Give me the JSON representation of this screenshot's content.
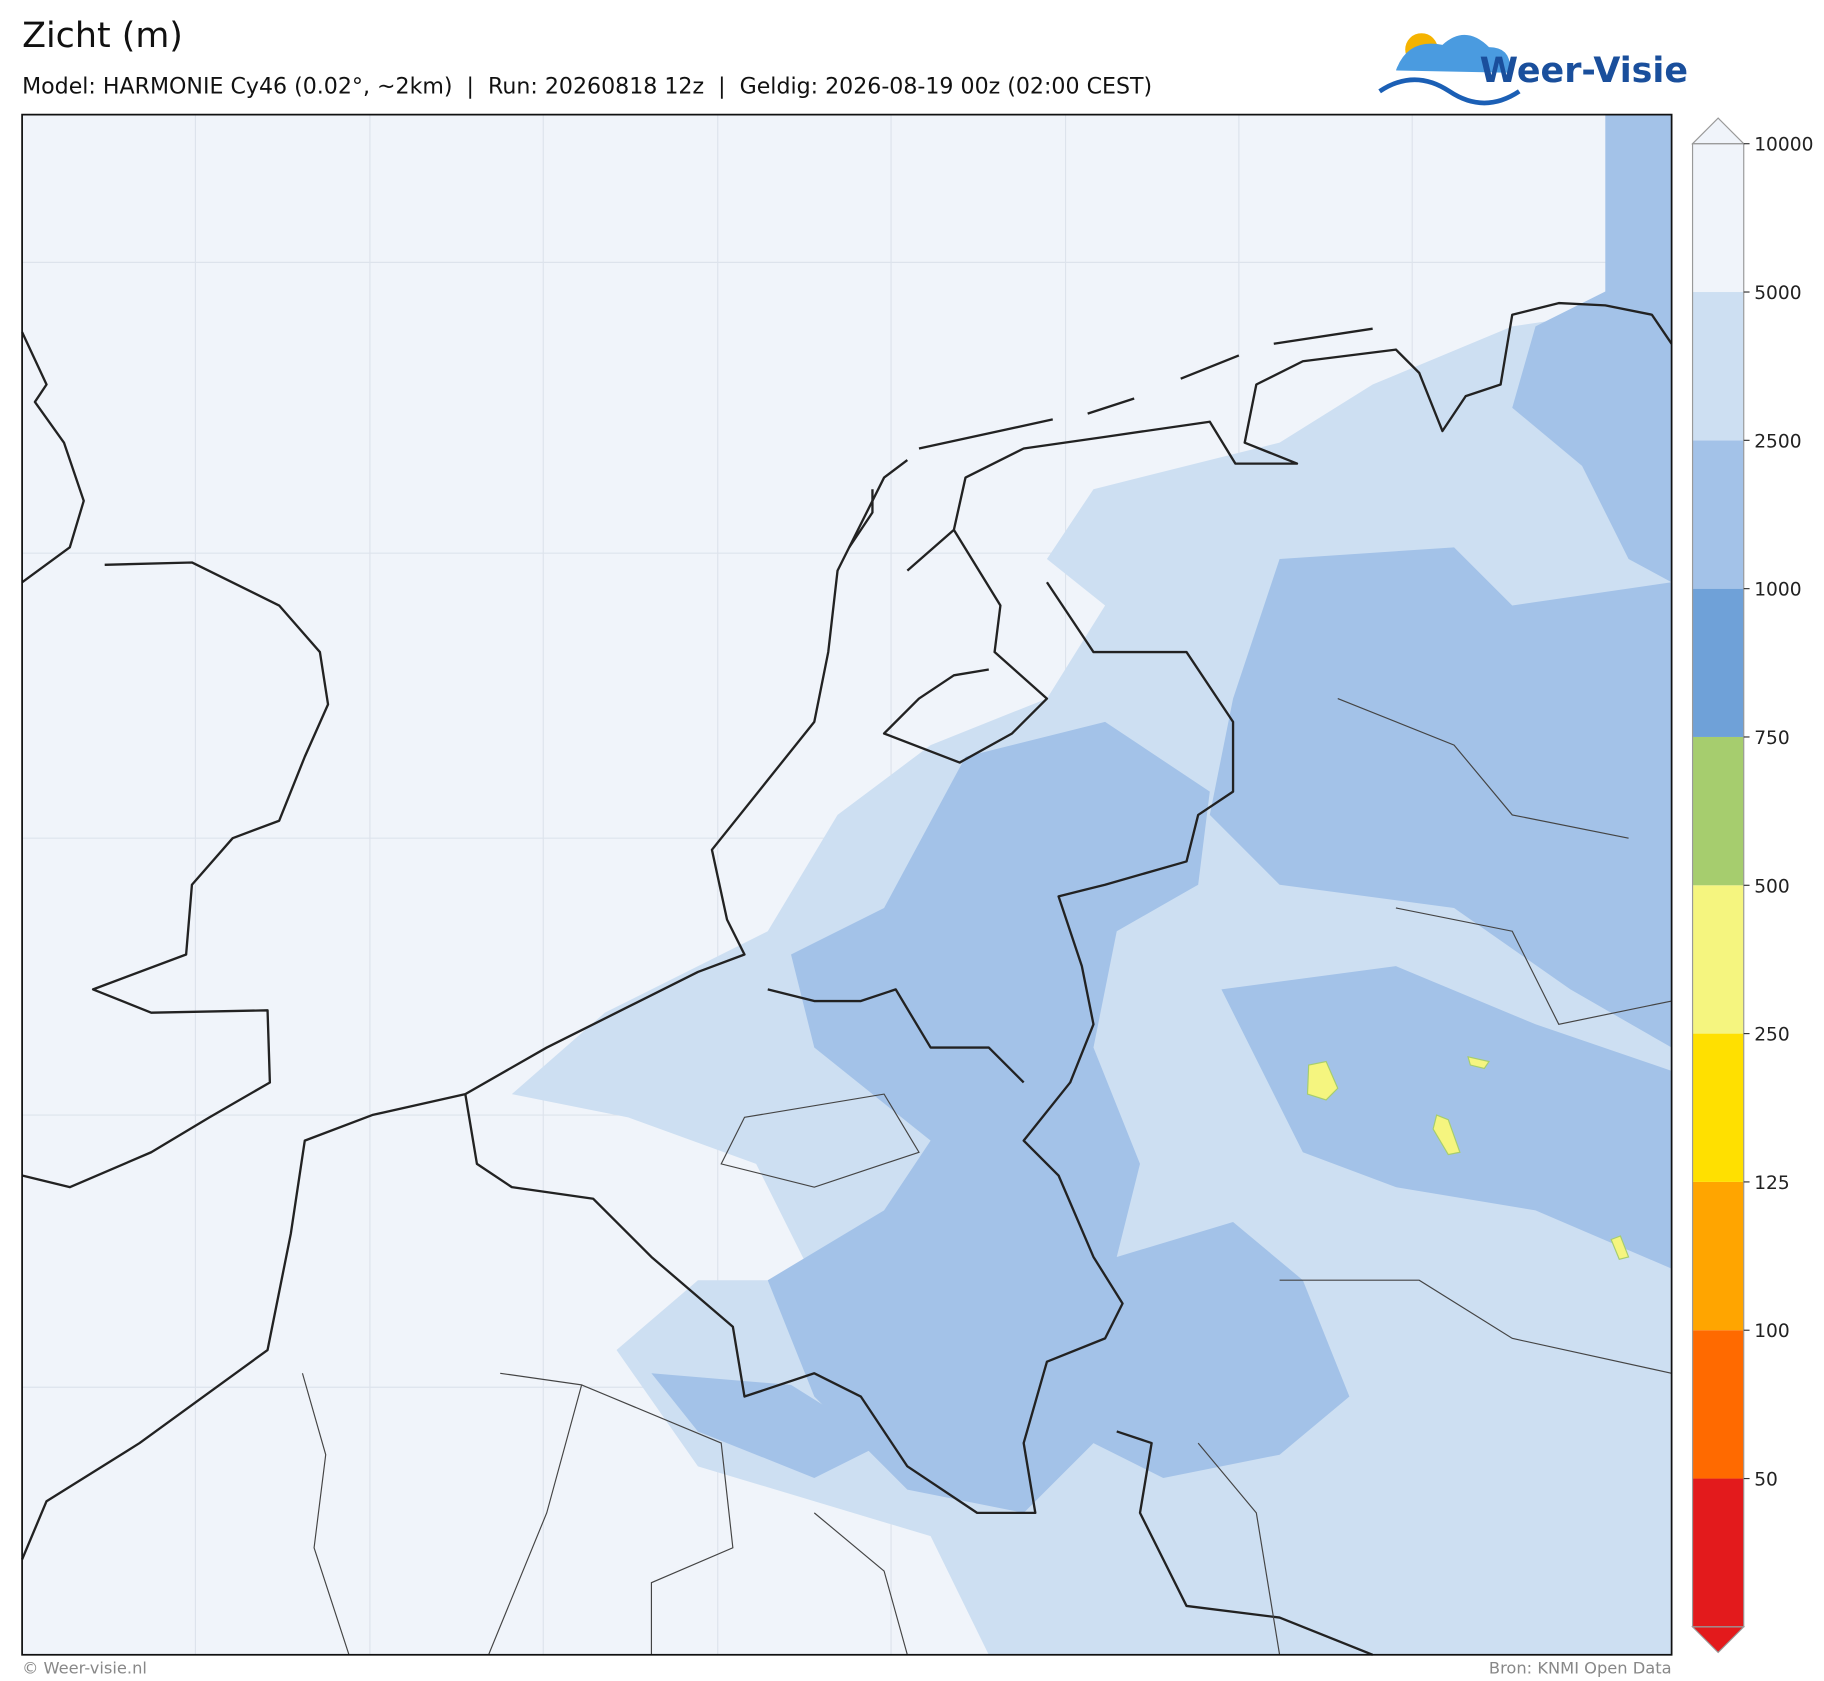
{
  "header": {
    "title": "Zicht (m)",
    "subtitle": "Model: HARMONIE Cy46 (0.02°, ~2km)  |  Run: 20260818 12z  |  Geldig: 2026-08-19 00z (02:00 CEST)"
  },
  "logo": {
    "text": "Weer-Visie"
  },
  "colorbar": {
    "ticks": [
      50,
      100,
      125,
      250,
      500,
      750,
      1000,
      2500,
      5000,
      10000
    ],
    "colors": [
      "#e31a1c",
      "#ff6a00",
      "#ffa500",
      "#ffe000",
      "#f5f57f",
      "#a6cd6e",
      "#6fa1d8",
      "#a3c2e8",
      "#cddff2",
      "#f0f4fa"
    ]
  },
  "footer": {
    "left": "© Weer-visie.nl",
    "right": "Bron: KNMI Open Data"
  }
}
